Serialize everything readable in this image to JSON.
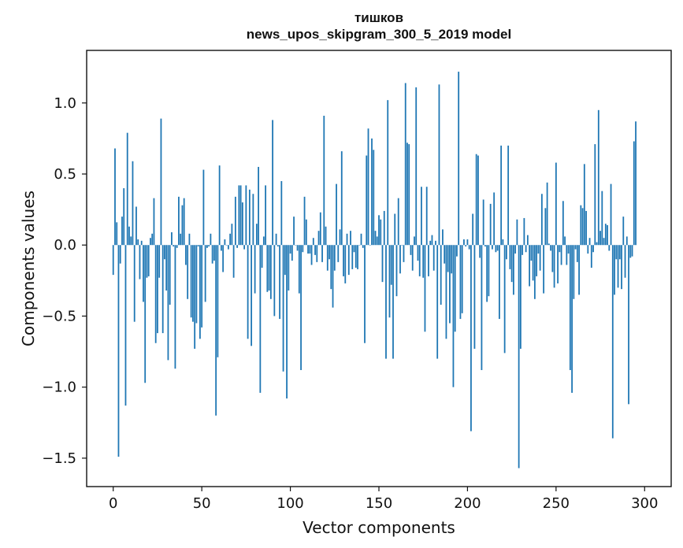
{
  "chart_data": {
    "type": "bar",
    "title": [
      "тишков",
      "news_upos_skipgram_300_5_2019 model"
    ],
    "xlabel": "Vector components",
    "ylabel": "Components values",
    "xlim": [
      -15,
      315
    ],
    "ylim": [
      -1.7,
      1.37
    ],
    "xticks": [
      0,
      50,
      100,
      150,
      200,
      250,
      300
    ],
    "xtick_labels": [
      "0",
      "50",
      "100",
      "150",
      "200",
      "250",
      "300"
    ],
    "yticks": [
      -1.5,
      -1.0,
      -0.5,
      0.0,
      0.5,
      1.0
    ],
    "ytick_labels": [
      "−1.5",
      "−1.0",
      "−0.5",
      "0.0",
      "0.5",
      "1.0"
    ],
    "grid": false,
    "bar_color": "#1f77b4",
    "values": [
      -0.21,
      0.68,
      0.16,
      -1.49,
      -0.13,
      0.2,
      0.4,
      -1.13,
      0.79,
      0.13,
      0.06,
      0.59,
      -0.54,
      0.27,
      0.04,
      -0.24,
      0.03,
      -0.4,
      -0.97,
      -0.23,
      -0.22,
      0.05,
      0.08,
      0.33,
      -0.69,
      -0.62,
      -0.23,
      0.89,
      -0.62,
      -0.1,
      -0.32,
      -0.81,
      -0.42,
      0.09,
      -0.01,
      -0.87,
      -0.02,
      0.34,
      0.08,
      0.28,
      0.33,
      -0.14,
      -0.38,
      0.08,
      -0.51,
      -0.54,
      -0.73,
      -0.55,
      -0.01,
      -0.66,
      -0.58,
      0.53,
      -0.4,
      -0.02,
      -0.01,
      0.08,
      -0.13,
      -0.11,
      -1.2,
      -0.79,
      0.56,
      -0.04,
      -0.19,
      0.04,
      0.0,
      -0.03,
      0.08,
      0.15,
      -0.23,
      0.34,
      -0.02,
      0.42,
      0.42,
      0.3,
      -0.03,
      0.42,
      -0.66,
      0.39,
      -0.71,
      0.36,
      -0.34,
      0.15,
      0.55,
      -1.04,
      -0.16,
      0.06,
      0.42,
      -0.33,
      -0.32,
      -0.38,
      0.88,
      -0.5,
      0.08,
      -0.01,
      -0.52,
      0.45,
      -0.89,
      -0.21,
      -1.08,
      -0.32,
      -0.06,
      -0.11,
      0.2,
      0.0,
      -0.04,
      -0.34,
      -0.88,
      -0.05,
      0.34,
      0.18,
      -0.06,
      -0.06,
      -0.14,
      0.05,
      -0.07,
      -0.12,
      0.1,
      0.23,
      -0.12,
      0.91,
      0.13,
      -0.18,
      -0.1,
      -0.31,
      -0.44,
      -0.18,
      0.43,
      -0.12,
      0.11,
      0.66,
      -0.22,
      -0.27,
      0.08,
      -0.21,
      0.1,
      -0.17,
      -0.05,
      -0.16,
      -0.17,
      0.0,
      0.08,
      -0.02,
      -0.69,
      0.63,
      0.82,
      0.0,
      0.75,
      0.67,
      0.1,
      0.06,
      0.21,
      0.18,
      -0.26,
      0.24,
      -0.8,
      1.02,
      -0.51,
      -0.28,
      -0.8,
      0.22,
      -0.36,
      0.33,
      -0.2,
      0.0,
      -0.12,
      1.14,
      0.72,
      0.71,
      -0.07,
      -0.18,
      0.06,
      1.11,
      -0.11,
      -0.22,
      0.41,
      -0.23,
      -0.61,
      0.41,
      -0.22,
      0.03,
      0.07,
      -0.18,
      0.03,
      -0.8,
      1.13,
      -0.42,
      0.11,
      -0.13,
      -0.66,
      -0.19,
      -0.55,
      -0.2,
      -1.0,
      -0.61,
      -0.08,
      1.22,
      -0.52,
      -0.48,
      0.04,
      -0.01,
      0.04,
      -0.03,
      -1.31,
      0.22,
      -0.73,
      0.64,
      0.63,
      -0.09,
      -0.88,
      0.32,
      -0.01,
      -0.4,
      -0.36,
      0.29,
      -0.03,
      0.37,
      -0.05,
      -0.04,
      -0.52,
      0.7,
      0.04,
      -0.76,
      -0.1,
      0.7,
      -0.17,
      -0.26,
      -0.35,
      -0.06,
      0.18,
      -1.57,
      -0.73,
      -0.07,
      0.19,
      -0.05,
      0.07,
      -0.29,
      -0.11,
      -0.25,
      -0.38,
      -0.22,
      -0.06,
      -0.18,
      0.36,
      -0.34,
      0.26,
      0.44,
      0.01,
      -0.04,
      -0.19,
      -0.3,
      0.58,
      -0.27,
      -0.05,
      -0.14,
      0.31,
      0.06,
      -0.14,
      -0.06,
      -0.88,
      -1.04,
      -0.38,
      -0.03,
      -0.12,
      -0.35,
      0.28,
      0.26,
      0.57,
      0.24,
      -0.06,
      0.05,
      -0.16,
      -0.05,
      0.71,
      0.02,
      0.95,
      0.1,
      0.38,
      0.05,
      0.15,
      0.14,
      -0.04,
      0.43,
      -1.36,
      -0.35,
      -0.1,
      -0.3,
      -0.1,
      -0.31,
      0.2,
      -0.23,
      0.06,
      -1.12,
      -0.09,
      -0.08,
      0.73,
      0.87
    ]
  }
}
